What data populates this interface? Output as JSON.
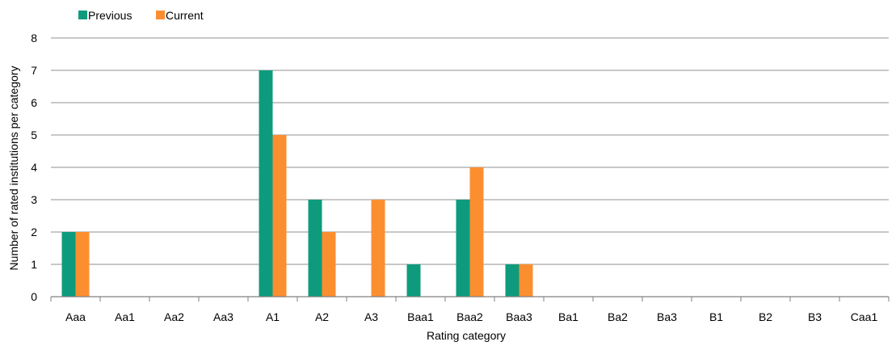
{
  "chart_data": {
    "type": "bar",
    "xlabel": "Rating category",
    "ylabel": "Number of rated institutions per category",
    "ylim": [
      0,
      8
    ],
    "yticks": [
      "0",
      "1",
      "2",
      "3",
      "4",
      "5",
      "6",
      "7",
      "8"
    ],
    "grid": true,
    "legend_position": "top-left",
    "categories": [
      "Aaa",
      "Aa1",
      "Aa2",
      "Aa3",
      "A1",
      "A2",
      "A3",
      "Baa1",
      "Baa2",
      "Baa3",
      "Ba1",
      "Ba2",
      "Ba3",
      "B1",
      "B2",
      "B3",
      "Caa1"
    ],
    "series": [
      {
        "name": "Previous",
        "color": "#0e9b7d",
        "values": [
          2,
          0,
          0,
          0,
          7,
          3,
          0,
          1,
          3,
          1,
          0,
          0,
          0,
          0,
          0,
          0,
          0
        ]
      },
      {
        "name": "Current",
        "color": "#fb8f30",
        "values": [
          2,
          0,
          0,
          0,
          5,
          2,
          3,
          0,
          4,
          1,
          0,
          0,
          0,
          0,
          0,
          0,
          0
        ]
      }
    ]
  }
}
